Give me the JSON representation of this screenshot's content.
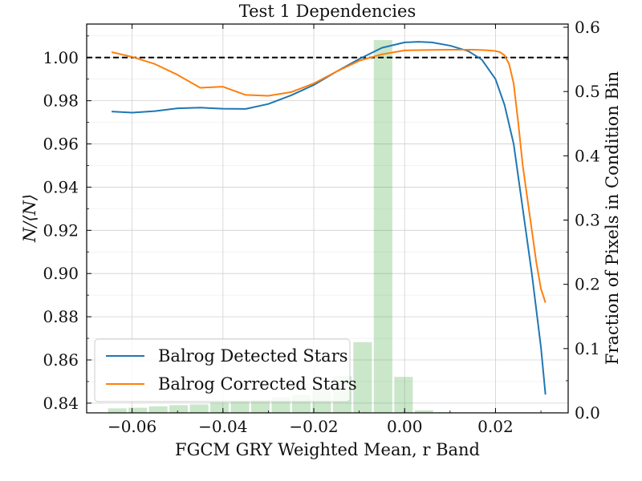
{
  "chart_data": {
    "type": "line",
    "title": "Test 1 Dependencies",
    "xlabel": "FGCM GRY Weighted Mean, r Band",
    "ylabel": "N/⟨N⟩",
    "y2label": "Fraction of Pixels in Condition Bin",
    "xlim": [
      -0.07,
      0.036
    ],
    "ylim": [
      0.8355,
      1.0155
    ],
    "y2lim": [
      0.0,
      0.605
    ],
    "grid": true,
    "legend_position": "lower-left",
    "x_ticks": [
      -0.06,
      -0.04,
      -0.02,
      0.0,
      0.02
    ],
    "x_tick_labels": [
      "−0.06",
      "−0.04",
      "−0.02",
      "0.00",
      "0.02"
    ],
    "y_ticks": [
      0.84,
      0.86,
      0.88,
      0.9,
      0.92,
      0.94,
      0.96,
      0.98,
      1.0
    ],
    "y_tick_labels": [
      "0.84",
      "0.86",
      "0.88",
      "0.90",
      "0.92",
      "0.94",
      "0.96",
      "0.98",
      "1.00"
    ],
    "y2_ticks": [
      0.0,
      0.1,
      0.2,
      0.3,
      0.4,
      0.5,
      0.6
    ],
    "y2_tick_labels": [
      "0.0",
      "0.1",
      "0.2",
      "0.3",
      "0.4",
      "0.5",
      "0.6"
    ],
    "reference_line": {
      "y": 1.0,
      "style": "dashed",
      "color": "#000000"
    },
    "series": [
      {
        "name": "Balrog Detected Stars",
        "color": "#1f77b4",
        "x": [
          -0.0645,
          -0.06,
          -0.055,
          -0.05,
          -0.045,
          -0.04,
          -0.035,
          -0.03,
          -0.025,
          -0.02,
          -0.015,
          -0.01,
          -0.005,
          0.0,
          0.003,
          0.006,
          0.01,
          0.014,
          0.017,
          0.02,
          0.022,
          0.024,
          0.026,
          0.028,
          0.03,
          0.031
        ],
        "y": [
          0.975,
          0.9745,
          0.9752,
          0.9765,
          0.9768,
          0.9763,
          0.9762,
          0.9785,
          0.9825,
          0.9873,
          0.9935,
          0.9993,
          1.0045,
          1.007,
          1.0073,
          1.007,
          1.0055,
          1.003,
          0.999,
          0.99,
          0.978,
          0.96,
          0.93,
          0.9,
          0.866,
          0.844
        ]
      },
      {
        "name": "Balrog Corrected Stars",
        "color": "#ff7f0e",
        "x": [
          -0.0645,
          -0.06,
          -0.055,
          -0.05,
          -0.045,
          -0.04,
          -0.035,
          -0.03,
          -0.025,
          -0.02,
          -0.015,
          -0.01,
          -0.005,
          0.0,
          0.005,
          0.01,
          0.015,
          0.018,
          0.02,
          0.021,
          0.022,
          0.023,
          0.024,
          0.025,
          0.026,
          0.027,
          0.028,
          0.029,
          0.03,
          0.031
        ],
        "y": [
          1.0025,
          1.0003,
          0.997,
          0.992,
          0.986,
          0.9865,
          0.9827,
          0.9823,
          0.984,
          0.988,
          0.9935,
          0.9985,
          1.0015,
          1.0033,
          1.0035,
          1.0036,
          1.0036,
          1.0034,
          1.003,
          1.0025,
          1.001,
          0.997,
          0.988,
          0.97,
          0.95,
          0.935,
          0.92,
          0.905,
          0.893,
          0.8865
        ]
      }
    ],
    "histogram": {
      "name": "Fraction of Pixels in Condition Bin",
      "color": "#2ca02c",
      "bin_edges": [
        -0.0655,
        -0.061,
        -0.0565,
        -0.052,
        -0.0475,
        -0.043,
        -0.0385,
        -0.034,
        -0.0295,
        -0.025,
        -0.0205,
        -0.016,
        -0.0115,
        -0.007,
        -0.0025,
        0.002,
        0.0065,
        0.011,
        0.0155,
        0.02,
        0.0245,
        0.029,
        0.0335
      ],
      "values": [
        0.007,
        0.008,
        0.01,
        0.012,
        0.013,
        0.016,
        0.017,
        0.02,
        0.024,
        0.028,
        0.037,
        0.057,
        0.11,
        0.58,
        0.056,
        0.004,
        0.001,
        0.0,
        0.0,
        0.0,
        0.0,
        0.0
      ]
    }
  }
}
